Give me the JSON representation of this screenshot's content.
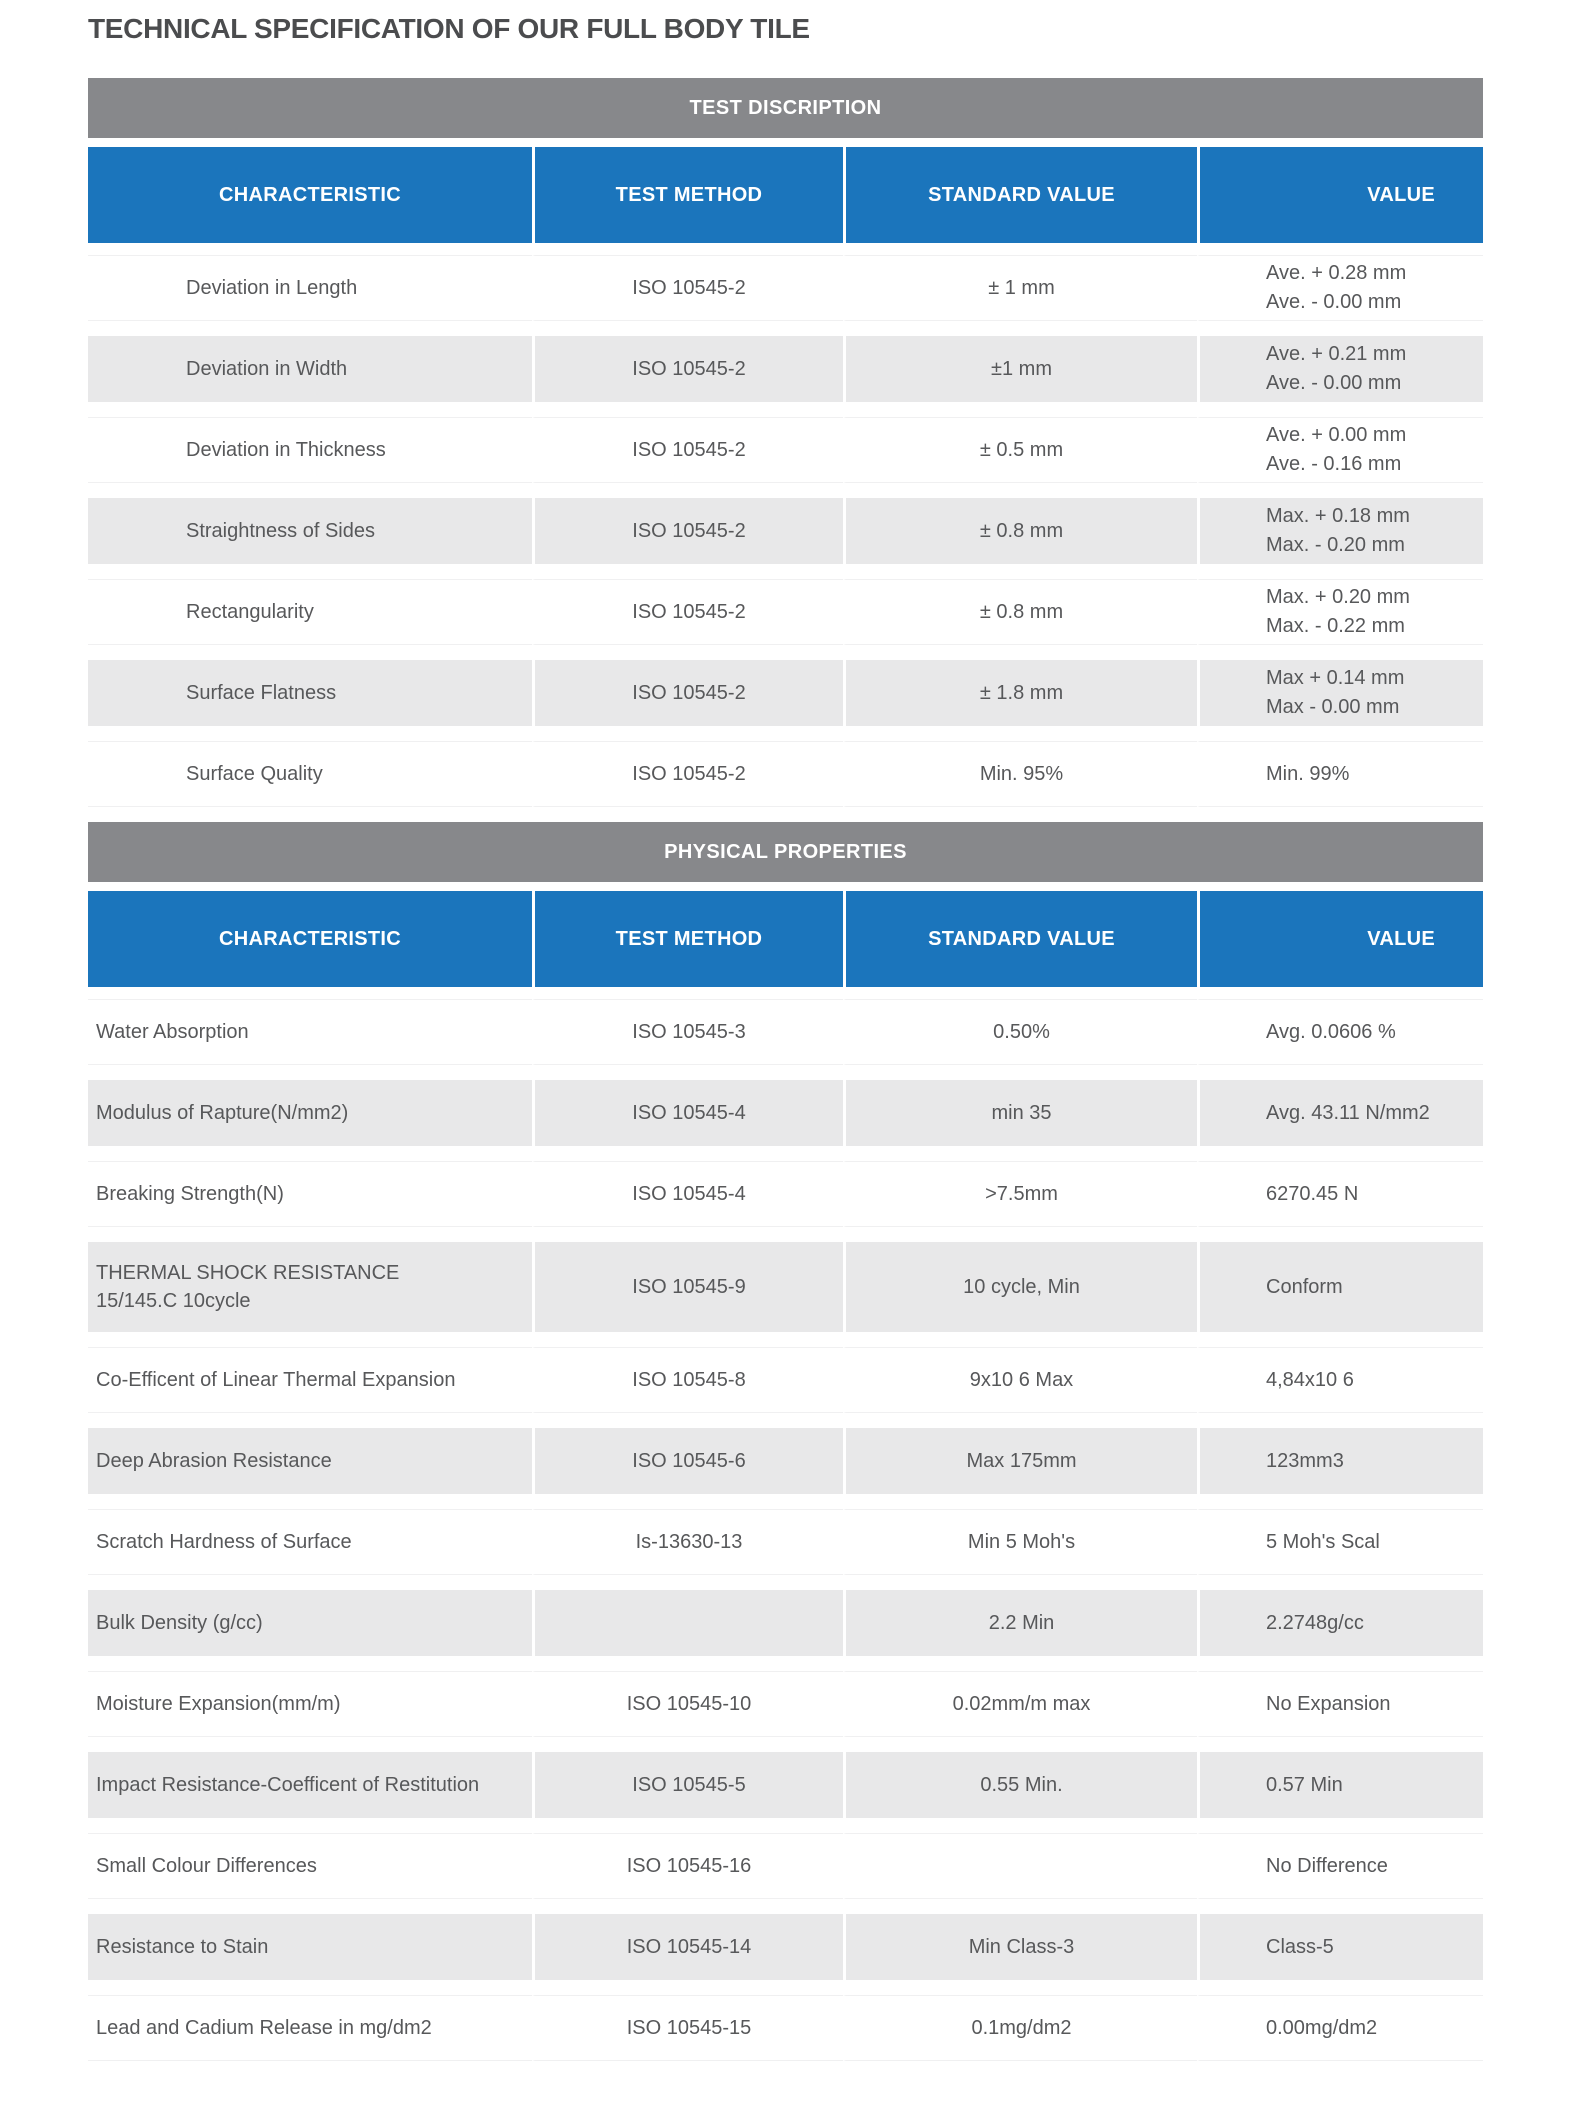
{
  "page": {
    "title": "TECHNICAL SPECIFICATION OF OUR FULL BODY TILE"
  },
  "colors": {
    "header_blue": "#1b75bc",
    "section_bar_gray": "#87888b",
    "row_stripe_gray": "#e8e8e9",
    "body_text": "#57585a",
    "title_text": "#4b4c4e"
  },
  "tables": [
    {
      "section_title": "TEST DISCRIPTION",
      "columns": [
        "CHARACTERISTIC",
        "TEST METHOD",
        "STANDARD VALUE",
        "VALUE"
      ],
      "rows": [
        {
          "characteristic_lines": [
            "Deviation in Length"
          ],
          "test_method": "ISO 10545-2",
          "standard_value": "± 1 mm",
          "value_lines": [
            "Ave. + 0.28 mm",
            "Ave. - 0.00 mm"
          ]
        },
        {
          "characteristic_lines": [
            "Deviation in Width"
          ],
          "test_method": "ISO 10545-2",
          "standard_value": "±1 mm",
          "value_lines": [
            "Ave. + 0.21 mm",
            "Ave. - 0.00 mm"
          ]
        },
        {
          "characteristic_lines": [
            "Deviation in Thickness"
          ],
          "test_method": "ISO 10545-2",
          "standard_value": "± 0.5 mm",
          "value_lines": [
            "Ave. + 0.00 mm",
            "Ave. - 0.16 mm"
          ]
        },
        {
          "characteristic_lines": [
            "Straightness of Sides"
          ],
          "test_method": "ISO 10545-2",
          "standard_value": "± 0.8 mm",
          "value_lines": [
            "Max. + 0.18 mm",
            "Max. - 0.20 mm"
          ]
        },
        {
          "characteristic_lines": [
            "Rectangularity"
          ],
          "test_method": "ISO 10545-2",
          "standard_value": "± 0.8 mm",
          "value_lines": [
            "Max. + 0.20 mm",
            "Max. - 0.22 mm"
          ]
        },
        {
          "characteristic_lines": [
            "Surface Flatness"
          ],
          "test_method": "ISO 10545-2",
          "standard_value": "± 1.8 mm",
          "value_lines": [
            "Max +  0.14 mm",
            "Max -  0.00 mm"
          ]
        },
        {
          "characteristic_lines": [
            "Surface Quality"
          ],
          "test_method": "ISO 10545-2",
          "standard_value": "Min. 95%",
          "value_lines": [
            "Min. 99%"
          ]
        }
      ]
    },
    {
      "section_title": "PHYSICAL PROPERTIES",
      "columns": [
        "CHARACTERISTIC",
        "TEST METHOD",
        "STANDARD VALUE",
        "VALUE"
      ],
      "rows": [
        {
          "characteristic_lines": [
            "Water Absorption"
          ],
          "test_method": "ISO 10545-3",
          "standard_value": "0.50%",
          "value_lines": [
            "Avg. 0.0606 %"
          ]
        },
        {
          "characteristic_lines": [
            "Modulus of Rapture(N/mm2)"
          ],
          "test_method": "ISO 10545-4",
          "standard_value": "min 35",
          "value_lines": [
            "Avg. 43.11 N/mm2"
          ]
        },
        {
          "characteristic_lines": [
            "Breaking Strength(N)"
          ],
          "test_method": "ISO 10545-4",
          "standard_value": ">7.5mm",
          "value_lines": [
            "6270.45 N"
          ]
        },
        {
          "characteristic_lines": [
            "THERMAL SHOCK RESISTANCE",
            "15/145.C 10cycle"
          ],
          "test_method": "ISO 10545-9",
          "standard_value": "10 cycle, Min",
          "value_lines": [
            "Conform"
          ]
        },
        {
          "characteristic_lines": [
            "Co-Efficent of Linear Thermal Expansion"
          ],
          "test_method": "ISO 10545-8",
          "standard_value": "9x10 6 Max",
          "value_lines": [
            "4,84x10 6"
          ]
        },
        {
          "characteristic_lines": [
            "Deep Abrasion Resistance"
          ],
          "test_method": "ISO 10545-6",
          "standard_value": "Max 175mm",
          "value_lines": [
            "123mm3"
          ]
        },
        {
          "characteristic_lines": [
            "Scratch Hardness of Surface"
          ],
          "test_method": "Is-13630-13",
          "standard_value": "Min 5 Moh's",
          "value_lines": [
            "5 Moh's Scal"
          ]
        },
        {
          "characteristic_lines": [
            "Bulk Density (g/cc)"
          ],
          "test_method": "",
          "standard_value": "2.2 Min",
          "value_lines": [
            "2.2748g/cc"
          ]
        },
        {
          "characteristic_lines": [
            "Moisture Expansion(mm/m)"
          ],
          "test_method": "ISO 10545-10",
          "standard_value": "0.02mm/m max",
          "value_lines": [
            "No Expansion"
          ]
        },
        {
          "characteristic_lines": [
            "Impact Resistance-Coefficent of Restitution"
          ],
          "test_method": "ISO 10545-5",
          "standard_value": "0.55 Min.",
          "value_lines": [
            "0.57 Min"
          ]
        },
        {
          "characteristic_lines": [
            "Small Colour Differences"
          ],
          "test_method": "ISO 10545-16",
          "standard_value": "",
          "value_lines": [
            "No Difference"
          ]
        },
        {
          "characteristic_lines": [
            "Resistance to Stain"
          ],
          "test_method": "ISO 10545-14",
          "standard_value": "Min Class-3",
          "value_lines": [
            "Class-5"
          ]
        },
        {
          "characteristic_lines": [
            "Lead and Cadium Release in mg/dm2"
          ],
          "test_method": "ISO 10545-15",
          "standard_value": "0.1mg/dm2",
          "value_lines": [
            "0.00mg/dm2"
          ]
        }
      ]
    }
  ]
}
